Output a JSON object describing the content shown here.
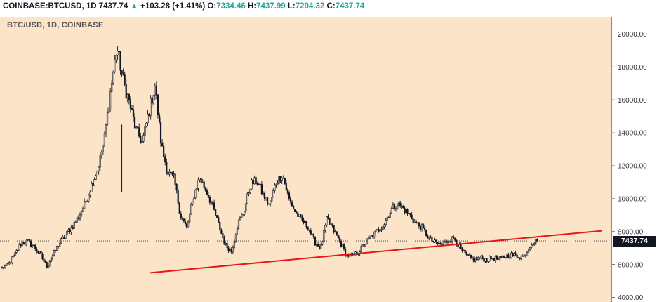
{
  "header": {
    "symbol": "COINBASE:BTCUSD, 1D",
    "last": "7437.74",
    "change_arrow": "▲",
    "change": "+103.28 (+1.41%)",
    "o_label": "O:",
    "o": "7334.46",
    "h_label": "H:",
    "h": "7437.99",
    "l_label": "L:",
    "l": "7204.32",
    "c_label": "C:",
    "c": "7437.74"
  },
  "colors": {
    "background": "#fbe4c8",
    "candle": "#131722",
    "trendline": "#e81717",
    "up": "#26a69a"
  },
  "chart_data": {
    "type": "candlestick",
    "title": "BTC/USD, 1D, COINBASE",
    "ylim": [
      3900,
      21000
    ],
    "y_ticks": [
      4000,
      6000,
      8000,
      10000,
      12000,
      14000,
      16000,
      18000,
      20000
    ],
    "y_tick_labels": [
      "4000.00",
      "6000.00",
      "8000.00",
      "10000.00",
      "12000.00",
      "14000.00",
      "16000.00",
      "18000.00",
      "20000.00"
    ],
    "last_price": 7437.74,
    "last_price_label": "7437.74",
    "close_series": [
      5800,
      6000,
      6600,
      7300,
      7400,
      7100,
      6600,
      5900,
      6600,
      7300,
      7800,
      8300,
      8900,
      9700,
      10800,
      11800,
      13500,
      16500,
      19200,
      17200,
      15800,
      14200,
      13400,
      15200,
      16900,
      13200,
      11600,
      11200,
      9000,
      8200,
      10100,
      11300,
      10500,
      9600,
      8400,
      7200,
      6800,
      8500,
      9300,
      10900,
      11100,
      10200,
      9600,
      11000,
      11500,
      10000,
      9200,
      8700,
      8300,
      7400,
      7000,
      8800,
      8100,
      7400,
      6600,
      6500,
      6800,
      7300,
      7700,
      8100,
      8500,
      9300,
      9700,
      9400,
      9000,
      8500,
      8200,
      7600,
      7300,
      7200,
      7500,
      7600,
      6900,
      6500,
      6300,
      6400,
      6300,
      6400,
      6300,
      6500,
      6600,
      6500,
      6500,
      7300,
      7437.74
    ],
    "high": 19891,
    "low": 5873,
    "trendline": {
      "start": {
        "bar": 41,
        "price": 5500
      },
      "end": {
        "bar": 372,
        "price": 8050
      },
      "color": "#e81717"
    }
  }
}
